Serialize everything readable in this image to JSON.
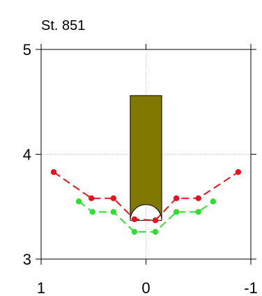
{
  "chart_data": {
    "type": "line",
    "title": "St. 851",
    "xlabel": "",
    "ylabel": "",
    "xlim": [
      1,
      -1
    ],
    "ylim": [
      3,
      5
    ],
    "x_ticks": [
      1,
      0,
      -1
    ],
    "x_tick_labels": [
      "1",
      "0",
      "-1"
    ],
    "y_ticks": [
      3,
      4,
      5
    ],
    "y_tick_labels": [
      "3",
      "4",
      "5"
    ],
    "grid": true,
    "legend": "none",
    "colors": {
      "red_series": "#e8121a",
      "green_series": "#2de02d",
      "bar": "#807800",
      "grid": "#b4b4b4",
      "axes": "#000000"
    },
    "series": [
      {
        "color_key": "red_series",
        "x": [
          0.88,
          0.52,
          0.31,
          0.11,
          -0.09,
          -0.29,
          -0.5,
          -0.88
        ],
        "y": [
          3.83,
          3.58,
          3.58,
          3.38,
          3.37,
          3.58,
          3.58,
          3.83
        ]
      },
      {
        "color_key": "green_series",
        "x": [
          0.64,
          0.51,
          0.31,
          0.11,
          -0.09,
          -0.29,
          -0.5,
          -0.64
        ],
        "y": [
          3.55,
          3.45,
          3.45,
          3.26,
          3.26,
          3.45,
          3.45,
          3.55
        ]
      }
    ],
    "bar": {
      "x0": 0.15,
      "x1": -0.15,
      "y_top": 4.56,
      "y_bottom": 3.37,
      "arch_radius": 0.15
    }
  }
}
